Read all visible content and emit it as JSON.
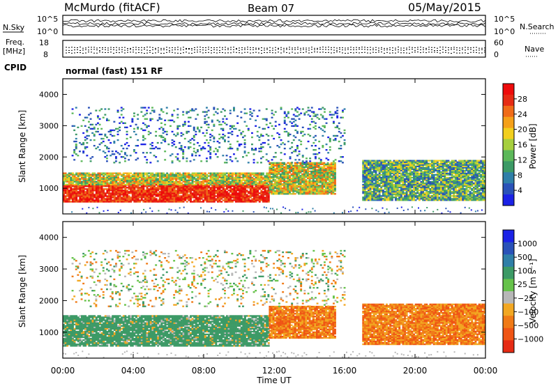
{
  "header": {
    "station": "McMurdo (fitACF)",
    "beam": "Beam 07",
    "date": "05/May/2015"
  },
  "left_labels": {
    "nsky": "N.Sky",
    "freq": "Freq.",
    "freq_unit": "[MHz]",
    "cpid": "CPID",
    "nsky_ticks": [
      "10^5",
      "10^0"
    ],
    "freq_ticks": [
      "18",
      "8"
    ]
  },
  "right_labels": {
    "nsearch": "N.Search",
    "nave": "Nave",
    "nsearch_ticks": [
      "10^5",
      "10^0"
    ],
    "nave_ticks": [
      "60",
      "0"
    ]
  },
  "cpid_text": "normal (fast) 151 RF",
  "chart_data": [
    {
      "type": "heatmap",
      "name": "power",
      "ylabel": "Slant Range [km]",
      "xlabel": "",
      "ylim": [
        180,
        4500
      ],
      "yticks": [
        1000,
        2000,
        3000,
        4000
      ],
      "xticks": [
        "00:00",
        "04:00",
        "08:00",
        "12:00",
        "16:00",
        "20:00",
        "00:00"
      ],
      "colorbar": {
        "label": "Power [dB]",
        "ticks": [
          "4",
          "8",
          "12",
          "16",
          "20",
          "24",
          "28"
        ],
        "colors": [
          "#1b22e6",
          "#2a52b8",
          "#2f7fa8",
          "#3c9a66",
          "#5cb85a",
          "#a6cf3e",
          "#f2cf1e",
          "#f5a019",
          "#f06b18",
          "#e62b14",
          "#ee0b0b"
        ]
      },
      "bands": [
        {
          "from_hour": 0.0,
          "to_hour": 11.7,
          "range_km": [
            550,
            1100
          ],
          "level": "high"
        },
        {
          "from_hour": 0.0,
          "to_hour": 11.7,
          "range_km": [
            1100,
            1500
          ],
          "level": "mid"
        },
        {
          "from_hour": 11.7,
          "to_hour": 15.5,
          "range_km": [
            800,
            1800
          ],
          "level": "mid"
        },
        {
          "from_hour": 17.0,
          "to_hour": 24.0,
          "range_km": [
            600,
            1900
          ],
          "level": "low-mid"
        },
        {
          "from_hour": 0.5,
          "to_hour": 16.0,
          "range_km": [
            1800,
            3600
          ],
          "level": "scatter"
        }
      ]
    },
    {
      "type": "heatmap",
      "name": "velocity",
      "ylabel": "Slant Range [km]",
      "xlabel": "Time UT",
      "ylim": [
        180,
        4500
      ],
      "yticks": [
        1000,
        2000,
        3000,
        4000
      ],
      "xticks": [
        "00:00",
        "04:00",
        "08:00",
        "12:00",
        "16:00",
        "20:00",
        "00:00"
      ],
      "colorbar": {
        "label": "Velocity [m s⁻¹]",
        "ticks": [
          "1000",
          "500",
          "100",
          "25",
          "−25",
          "−100",
          "−500",
          "−1000"
        ],
        "colors": [
          "#1b22e6",
          "#2a52b8",
          "#2f7fa8",
          "#3c9a66",
          "#66c24a",
          "#b7b7b7",
          "#f2a722",
          "#f07a16",
          "#ef5515",
          "#e62b14"
        ]
      },
      "bands": [
        {
          "from_hour": 0.0,
          "to_hour": 11.7,
          "range_km": [
            550,
            1500
          ],
          "level": "green"
        },
        {
          "from_hour": 11.7,
          "to_hour": 15.5,
          "range_km": [
            800,
            1800
          ],
          "level": "orange"
        },
        {
          "from_hour": 17.0,
          "to_hour": 24.0,
          "range_km": [
            600,
            1900
          ],
          "level": "orange"
        },
        {
          "from_hour": 0.5,
          "to_hour": 16.0,
          "range_km": [
            1800,
            3600
          ],
          "level": "scatter"
        }
      ]
    }
  ]
}
